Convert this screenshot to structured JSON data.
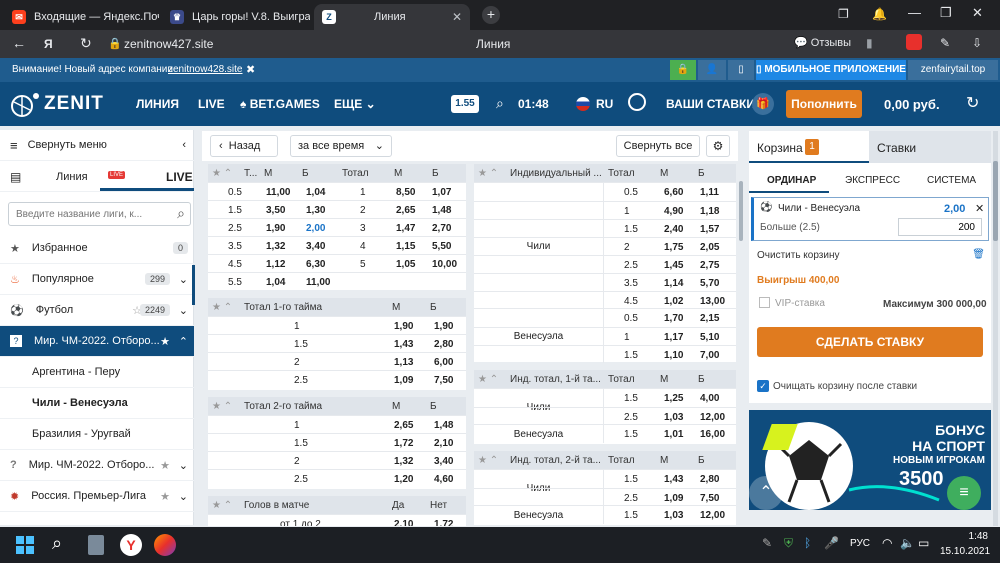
{
  "browser": {
    "tabs": [
      {
        "title": "Входящие — Яндекс.Почта"
      },
      {
        "title": "Царь горы! V.8. Выиграй"
      },
      {
        "title": "Линия"
      }
    ],
    "url": "zenitnow427.site",
    "page_title": "Линия",
    "reviews_label": "Отзывы"
  },
  "notice": {
    "text": "Внимание! Новый адрес компании",
    "link": "zenitnow428.site",
    "mobile_app": "МОБИЛЬНОЕ ПРИЛОЖЕНИЕ",
    "mirror": "zenfairytail.top"
  },
  "header": {
    "logo": "ZENIT",
    "nav": [
      "ЛИНИЯ",
      "LIVE",
      "BET.GAMES",
      "ЕЩЕ"
    ],
    "odds_format": "1.55",
    "time": "01:48",
    "lang": "RU",
    "my_bets": "ВАШИ СТАВКИ",
    "deposit": "Пополнить",
    "balance": "0,00 руб."
  },
  "sidebar": {
    "collapse": "Свернуть меню",
    "line_tab": "Линия",
    "live_tab": "LIVE",
    "live_badge": "LIVE",
    "search_placeholder": "Введите название лиги, к...",
    "items": [
      {
        "label": "Избранное",
        "count": "0"
      },
      {
        "label": "Популярное",
        "count": "299"
      },
      {
        "label": "Футбол",
        "count": "2249"
      },
      {
        "label": "Мир. ЧМ-2022. Отборо...",
        "count": ""
      },
      {
        "label": "Аргентина - Перу",
        "count": ""
      },
      {
        "label": "Чили - Венесуэла",
        "count": ""
      },
      {
        "label": "Бразилия - Уругвай",
        "count": ""
      },
      {
        "label": "Мир. ЧМ-2022. Отборо...",
        "count": ""
      },
      {
        "label": "Россия. Премьер-Лига",
        "count": ""
      }
    ]
  },
  "toolbar": {
    "back": "Назад",
    "period": "за все время",
    "collapse_all": "Свернуть все"
  },
  "totals": {
    "headers": [
      "Т...",
      "М",
      "Б",
      "Тотал",
      "М",
      "Б"
    ],
    "rows": [
      [
        "0.5",
        "11,00",
        "1,04",
        "1",
        "8,50",
        "1,07"
      ],
      [
        "1.5",
        "3,50",
        "1,30",
        "2",
        "2,65",
        "1,48"
      ],
      [
        "2.5",
        "1,90",
        "2,00",
        "3",
        "1,47",
        "2,70"
      ],
      [
        "3.5",
        "1,32",
        "3,40",
        "4",
        "1,15",
        "5,50"
      ],
      [
        "4.5",
        "1,12",
        "6,30",
        "5",
        "1,05",
        "10,00"
      ],
      [
        "5.5",
        "1,04",
        "11,00",
        "",
        "",
        ""
      ]
    ]
  },
  "half1": {
    "title": "Тотал 1-го тайма",
    "h1": "М",
    "h2": "Б",
    "rows": [
      [
        "1",
        "1,90",
        "1,90"
      ],
      [
        "1.5",
        "1,43",
        "2,80"
      ],
      [
        "2",
        "1,13",
        "6,00"
      ],
      [
        "2.5",
        "1,09",
        "7,50"
      ]
    ]
  },
  "half2": {
    "title": "Тотал 2-го тайма",
    "h1": "М",
    "h2": "Б",
    "rows": [
      [
        "1",
        "2,65",
        "1,48"
      ],
      [
        "1.5",
        "1,72",
        "2,10"
      ],
      [
        "2",
        "1,32",
        "3,40"
      ],
      [
        "2.5",
        "1,20",
        "4,60"
      ]
    ]
  },
  "goals": {
    "title": "Голов в матче",
    "h1": "Да",
    "h2": "Нет",
    "rows": [
      [
        "от 1 до 2",
        "2,10",
        "1,72"
      ]
    ]
  },
  "indiv": {
    "title": "Индивидуальный ...",
    "h0": "Тотал",
    "h1": "М",
    "h2": "Б",
    "team1": "Чили",
    "team2": "Венесуэла",
    "rows1": [
      [
        "0.5",
        "6,60",
        "1,11"
      ],
      [
        "1",
        "4,90",
        "1,18"
      ],
      [
        "1.5",
        "2,40",
        "1,57"
      ],
      [
        "2",
        "1,75",
        "2,05"
      ],
      [
        "2.5",
        "1,45",
        "2,75"
      ],
      [
        "3.5",
        "1,14",
        "5,70"
      ],
      [
        "4.5",
        "1,02",
        "13,00"
      ]
    ],
    "rows2": [
      [
        "0.5",
        "1,70",
        "2,15"
      ],
      [
        "1",
        "1,17",
        "5,10"
      ],
      [
        "1.5",
        "1,10",
        "7,00"
      ]
    ]
  },
  "ind1": {
    "title": "Инд. тотал, 1-й та...",
    "h0": "Тотал",
    "h1": "М",
    "h2": "Б",
    "team1": "Чили",
    "team2": "Венесуэла",
    "rows1": [
      [
        "1.5",
        "1,25",
        "4,00"
      ],
      [
        "2.5",
        "1,03",
        "12,00"
      ]
    ],
    "rows2": [
      [
        "1.5",
        "1,01",
        "16,00"
      ]
    ]
  },
  "ind2": {
    "title": "Инд. тотал, 2-й та...",
    "h0": "Тотал",
    "h1": "М",
    "h2": "Б",
    "team1": "Чили",
    "team2": "Венесуэла",
    "rows1": [
      [
        "1.5",
        "1,43",
        "2,80"
      ],
      [
        "2.5",
        "1,09",
        "7,50"
      ]
    ],
    "rows2": [
      [
        "1.5",
        "1,03",
        "12,00"
      ]
    ]
  },
  "cart": {
    "tab_cart": "Корзина",
    "cart_count": "1",
    "tab_bets": "Ставки",
    "types": [
      "ОРДИНАР",
      "ЭКСПРЕСС",
      "СИСТЕМА"
    ],
    "event": "Чили - Венесуэла",
    "odd": "2,00",
    "outcome": "Больше (2.5)",
    "stake": "200",
    "clear": "Очистить корзину",
    "win": "Выигрыш 400,00",
    "vip": "VIP-ставка",
    "max": "Максимум 300 000,00",
    "place": "СДЕЛАТЬ СТАВКУ",
    "clear_after": "Очищать корзину после ставки"
  },
  "promo": {
    "line1": "БОНУС",
    "line2": "НА СПОРТ",
    "line3": "НОВЫМ ИГРОКАМ",
    "amount": "3500"
  },
  "taskbar": {
    "lang": "РУС",
    "time": "1:48",
    "date": "15.10.2021"
  },
  "colors": {
    "brand": "#0f4c7d",
    "accent": "#e07b1f",
    "highlight": "#1a73c7"
  }
}
